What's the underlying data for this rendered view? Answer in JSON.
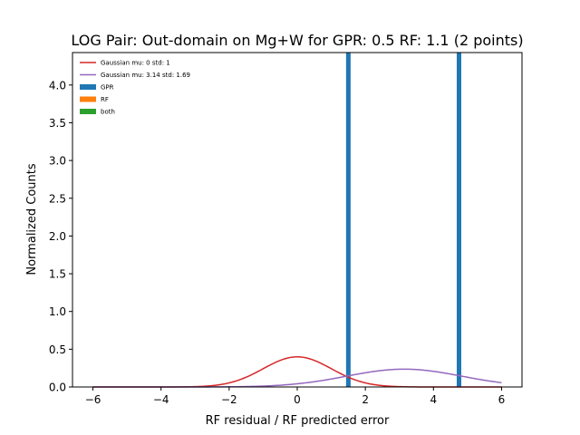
{
  "chart_data": {
    "type": "histogram",
    "title": "LOG Pair: Out-domain on Mg+W for GPR: 0.5 RF: 1.1 (2 points)",
    "xlabel": "RF residual / RF predicted error",
    "ylabel": "Normalized Counts",
    "xlim": [
      -6.6,
      6.6
    ],
    "ylim": [
      0,
      4.43
    ],
    "xticks": [
      -6,
      -4,
      -2,
      0,
      2,
      4,
      6
    ],
    "xtick_labels": [
      "−6",
      "−4",
      "−2",
      "0",
      "2",
      "4",
      "6"
    ],
    "yticks": [
      0.0,
      0.5,
      1.0,
      1.5,
      2.0,
      2.5,
      3.0,
      3.5,
      4.0
    ],
    "ytick_labels": [
      "0.0",
      "0.5",
      "1.0",
      "1.5",
      "2.0",
      "2.5",
      "3.0",
      "3.5",
      "4.0"
    ],
    "grid": false,
    "legend_position": "top-left",
    "curves": [
      {
        "name": "Gaussian mu: 0 std: 1",
        "mu": 0,
        "std": 1,
        "x_range": [
          -6,
          6
        ],
        "color": "#d62728"
      },
      {
        "name": "Gaussian mu: 3.14 std: 1.69",
        "mu": 3.14,
        "std": 1.69,
        "x_range": [
          -6,
          6
        ],
        "color": "#9467bd"
      }
    ],
    "bars": [
      {
        "series": "GPR",
        "x": 1.5,
        "height": 4.43,
        "color": "#1f77b4"
      },
      {
        "series": "GPR",
        "x": 4.75,
        "height": 4.43,
        "color": "#1f77b4"
      }
    ],
    "legend": [
      {
        "name": "Gaussian mu: 0 std: 1",
        "kind": "line",
        "color": "#d62728"
      },
      {
        "name": "Gaussian mu: 3.14 std: 1.69",
        "kind": "line",
        "color": "#9467bd"
      },
      {
        "name": "GPR",
        "kind": "patch",
        "color": "#1f77b4"
      },
      {
        "name": "RF",
        "kind": "patch",
        "color": "#ff7f0e"
      },
      {
        "name": "both",
        "kind": "patch",
        "color": "#2ca02c"
      }
    ]
  }
}
